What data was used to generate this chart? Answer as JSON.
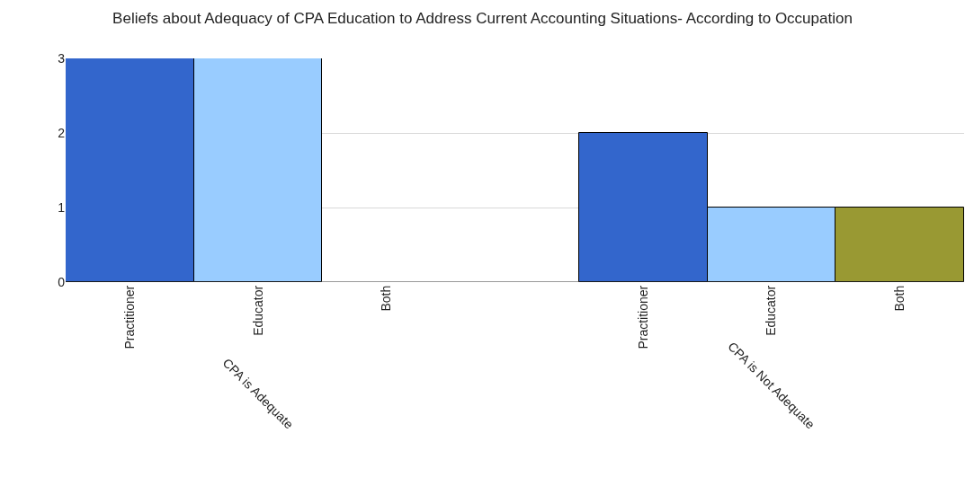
{
  "chart_data": {
    "type": "bar",
    "title": "Beliefs about Adequacy of CPA Education to Address Current Accounting Situations- According to Occupation",
    "categories": [
      "Practitioner",
      "Educator",
      "Both",
      "Practitioner",
      "Educator",
      "Both"
    ],
    "values": [
      3,
      3,
      0,
      2,
      1,
      1
    ],
    "colors": [
      "#3366cc",
      "#99ccff",
      null,
      "#3366cc",
      "#99ccff",
      "#999933"
    ],
    "ylim": [
      0,
      3
    ],
    "yticks": [
      0,
      1,
      2,
      3
    ],
    "grid": "y",
    "annotations": [
      "CPA is Adequate",
      "CPA is Not Adequate"
    ]
  }
}
